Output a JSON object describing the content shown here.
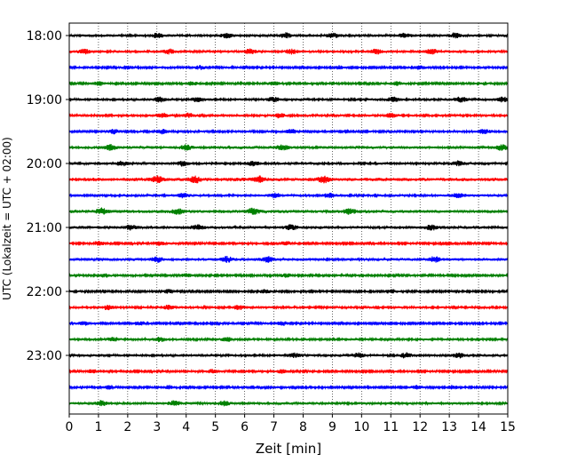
{
  "chart_data": {
    "type": "line",
    "title": "",
    "xlabel": "Zeit  [min]",
    "ylabel": "UTC (Lokalzeit = UTC + 02:00)",
    "xlim": [
      0,
      15
    ],
    "x_ticks": [
      "0",
      "1",
      "2",
      "3",
      "4",
      "5",
      "6",
      "7",
      "8",
      "9",
      "10",
      "11",
      "12",
      "13",
      "14",
      "15"
    ],
    "y_ticks": [
      {
        "label": "18:00",
        "row": 0
      },
      {
        "label": "19:00",
        "row": 4
      },
      {
        "label": "20:00",
        "row": 8
      },
      {
        "label": "21:00",
        "row": 12
      },
      {
        "label": "22:00",
        "row": 16
      },
      {
        "label": "23:00",
        "row": 20
      }
    ],
    "grid": "vertical dotted at each minute",
    "row_interval_minutes": 15,
    "color_cycle": [
      "#000000",
      "#ff0000",
      "#0000ff",
      "#008000"
    ],
    "traces": [
      {
        "start": "18:00",
        "amplitude": 1.0,
        "bursts": [
          3.0,
          5.4,
          7.4,
          9.0,
          11.5,
          13.2
        ]
      },
      {
        "start": "18:15",
        "amplitude": 1.0,
        "bursts": [
          0.5,
          3.4,
          6.2,
          7.6,
          10.5,
          12.4
        ]
      },
      {
        "start": "18:30",
        "amplitude": 0.8,
        "bursts": [
          2.0,
          4.5,
          9.2,
          12.0
        ]
      },
      {
        "start": "18:45",
        "amplitude": 0.8,
        "bursts": [
          1.0,
          4.2,
          7.0,
          11.2
        ]
      },
      {
        "start": "19:00",
        "amplitude": 1.0,
        "bursts": [
          3.1,
          4.4,
          7.0,
          11.1,
          13.4,
          14.8
        ]
      },
      {
        "start": "19:15",
        "amplitude": 0.9,
        "bursts": [
          3.2,
          4.1,
          7.2,
          11.0
        ]
      },
      {
        "start": "19:30",
        "amplitude": 0.9,
        "bursts": [
          1.5,
          3.2,
          7.6,
          14.2
        ]
      },
      {
        "start": "19:45",
        "amplitude": 1.1,
        "bursts": [
          1.4,
          4.0,
          7.3,
          14.8
        ]
      },
      {
        "start": "20:00",
        "amplitude": 1.0,
        "bursts": [
          1.8,
          3.9,
          6.3,
          13.3
        ]
      },
      {
        "start": "20:15",
        "amplitude": 1.3,
        "bursts": [
          3.0,
          4.3,
          6.5,
          8.7
        ]
      },
      {
        "start": "20:30",
        "amplitude": 1.0,
        "bursts": [
          3.9,
          7.0,
          8.9,
          13.3
        ]
      },
      {
        "start": "20:45",
        "amplitude": 1.2,
        "bursts": [
          1.1,
          3.7,
          6.3,
          9.6
        ]
      },
      {
        "start": "21:00",
        "amplitude": 1.1,
        "bursts": [
          2.1,
          4.4,
          7.6,
          12.4
        ]
      },
      {
        "start": "21:15",
        "amplitude": 0.8,
        "bursts": [
          1.0,
          3.1,
          7.4
        ]
      },
      {
        "start": "21:30",
        "amplitude": 1.1,
        "bursts": [
          3.0,
          5.4,
          6.8,
          12.5
        ]
      },
      {
        "start": "21:45",
        "amplitude": 0.8,
        "bursts": [
          1.2,
          4.0,
          7.4
        ]
      },
      {
        "start": "22:00",
        "amplitude": 0.8,
        "bursts": [
          3.4,
          6.7,
          11.0
        ]
      },
      {
        "start": "22:15",
        "amplitude": 0.9,
        "bursts": [
          1.3,
          3.4,
          5.8
        ]
      },
      {
        "start": "22:30",
        "amplitude": 0.8,
        "bursts": [
          0.5,
          2.4,
          7.3
        ]
      },
      {
        "start": "22:45",
        "amplitude": 0.9,
        "bursts": [
          1.5,
          3.1,
          5.4
        ]
      },
      {
        "start": "23:00",
        "amplitude": 1.0,
        "bursts": [
          7.7,
          9.9,
          11.5,
          13.3
        ]
      },
      {
        "start": "23:15",
        "amplitude": 0.8,
        "bursts": [
          0.8,
          4.9,
          7.3
        ]
      },
      {
        "start": "23:30",
        "amplitude": 0.8,
        "bursts": [
          1.4,
          3.4,
          11.9,
          13.1
        ]
      },
      {
        "start": "23:45",
        "amplitude": 1.0,
        "bursts": [
          1.1,
          3.6,
          5.3
        ]
      }
    ]
  }
}
